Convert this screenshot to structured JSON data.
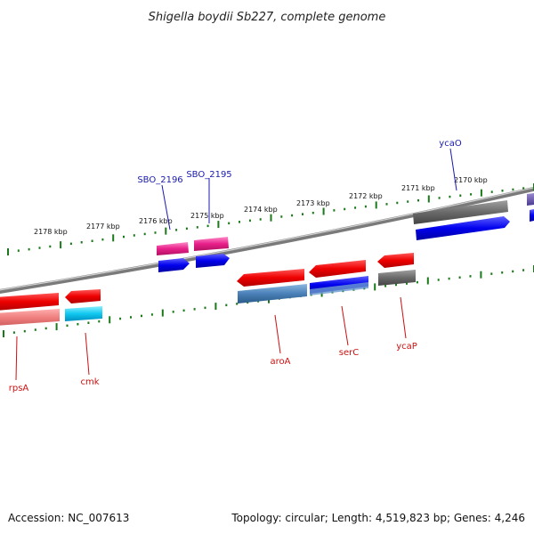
{
  "title": "Shigella boydii Sb227, complete genome",
  "footer": {
    "accession": "Accession: NC_007613",
    "topology": "Topology: circular; Length: 4,519,823 bp; Genes: 4,246"
  },
  "ticks": [
    "2178 kbp",
    "2177 kbp",
    "2176 kbp",
    "2175 kbp",
    "2174 kbp",
    "2173 kbp",
    "2172 kbp",
    "2171 kbp",
    "2170 kbp"
  ],
  "labels": {
    "top": [
      "SBO_2196",
      "SBO_2195",
      "ycaO"
    ],
    "bottom": [
      "rpsA",
      "cmk",
      "aroA",
      "serC",
      "ycaP"
    ]
  },
  "colors": {
    "label_top": "#1a1ab0",
    "label_bottom": "#cc1111",
    "tick": "#1a7a1a",
    "backbone": "#8a8a8a"
  }
}
